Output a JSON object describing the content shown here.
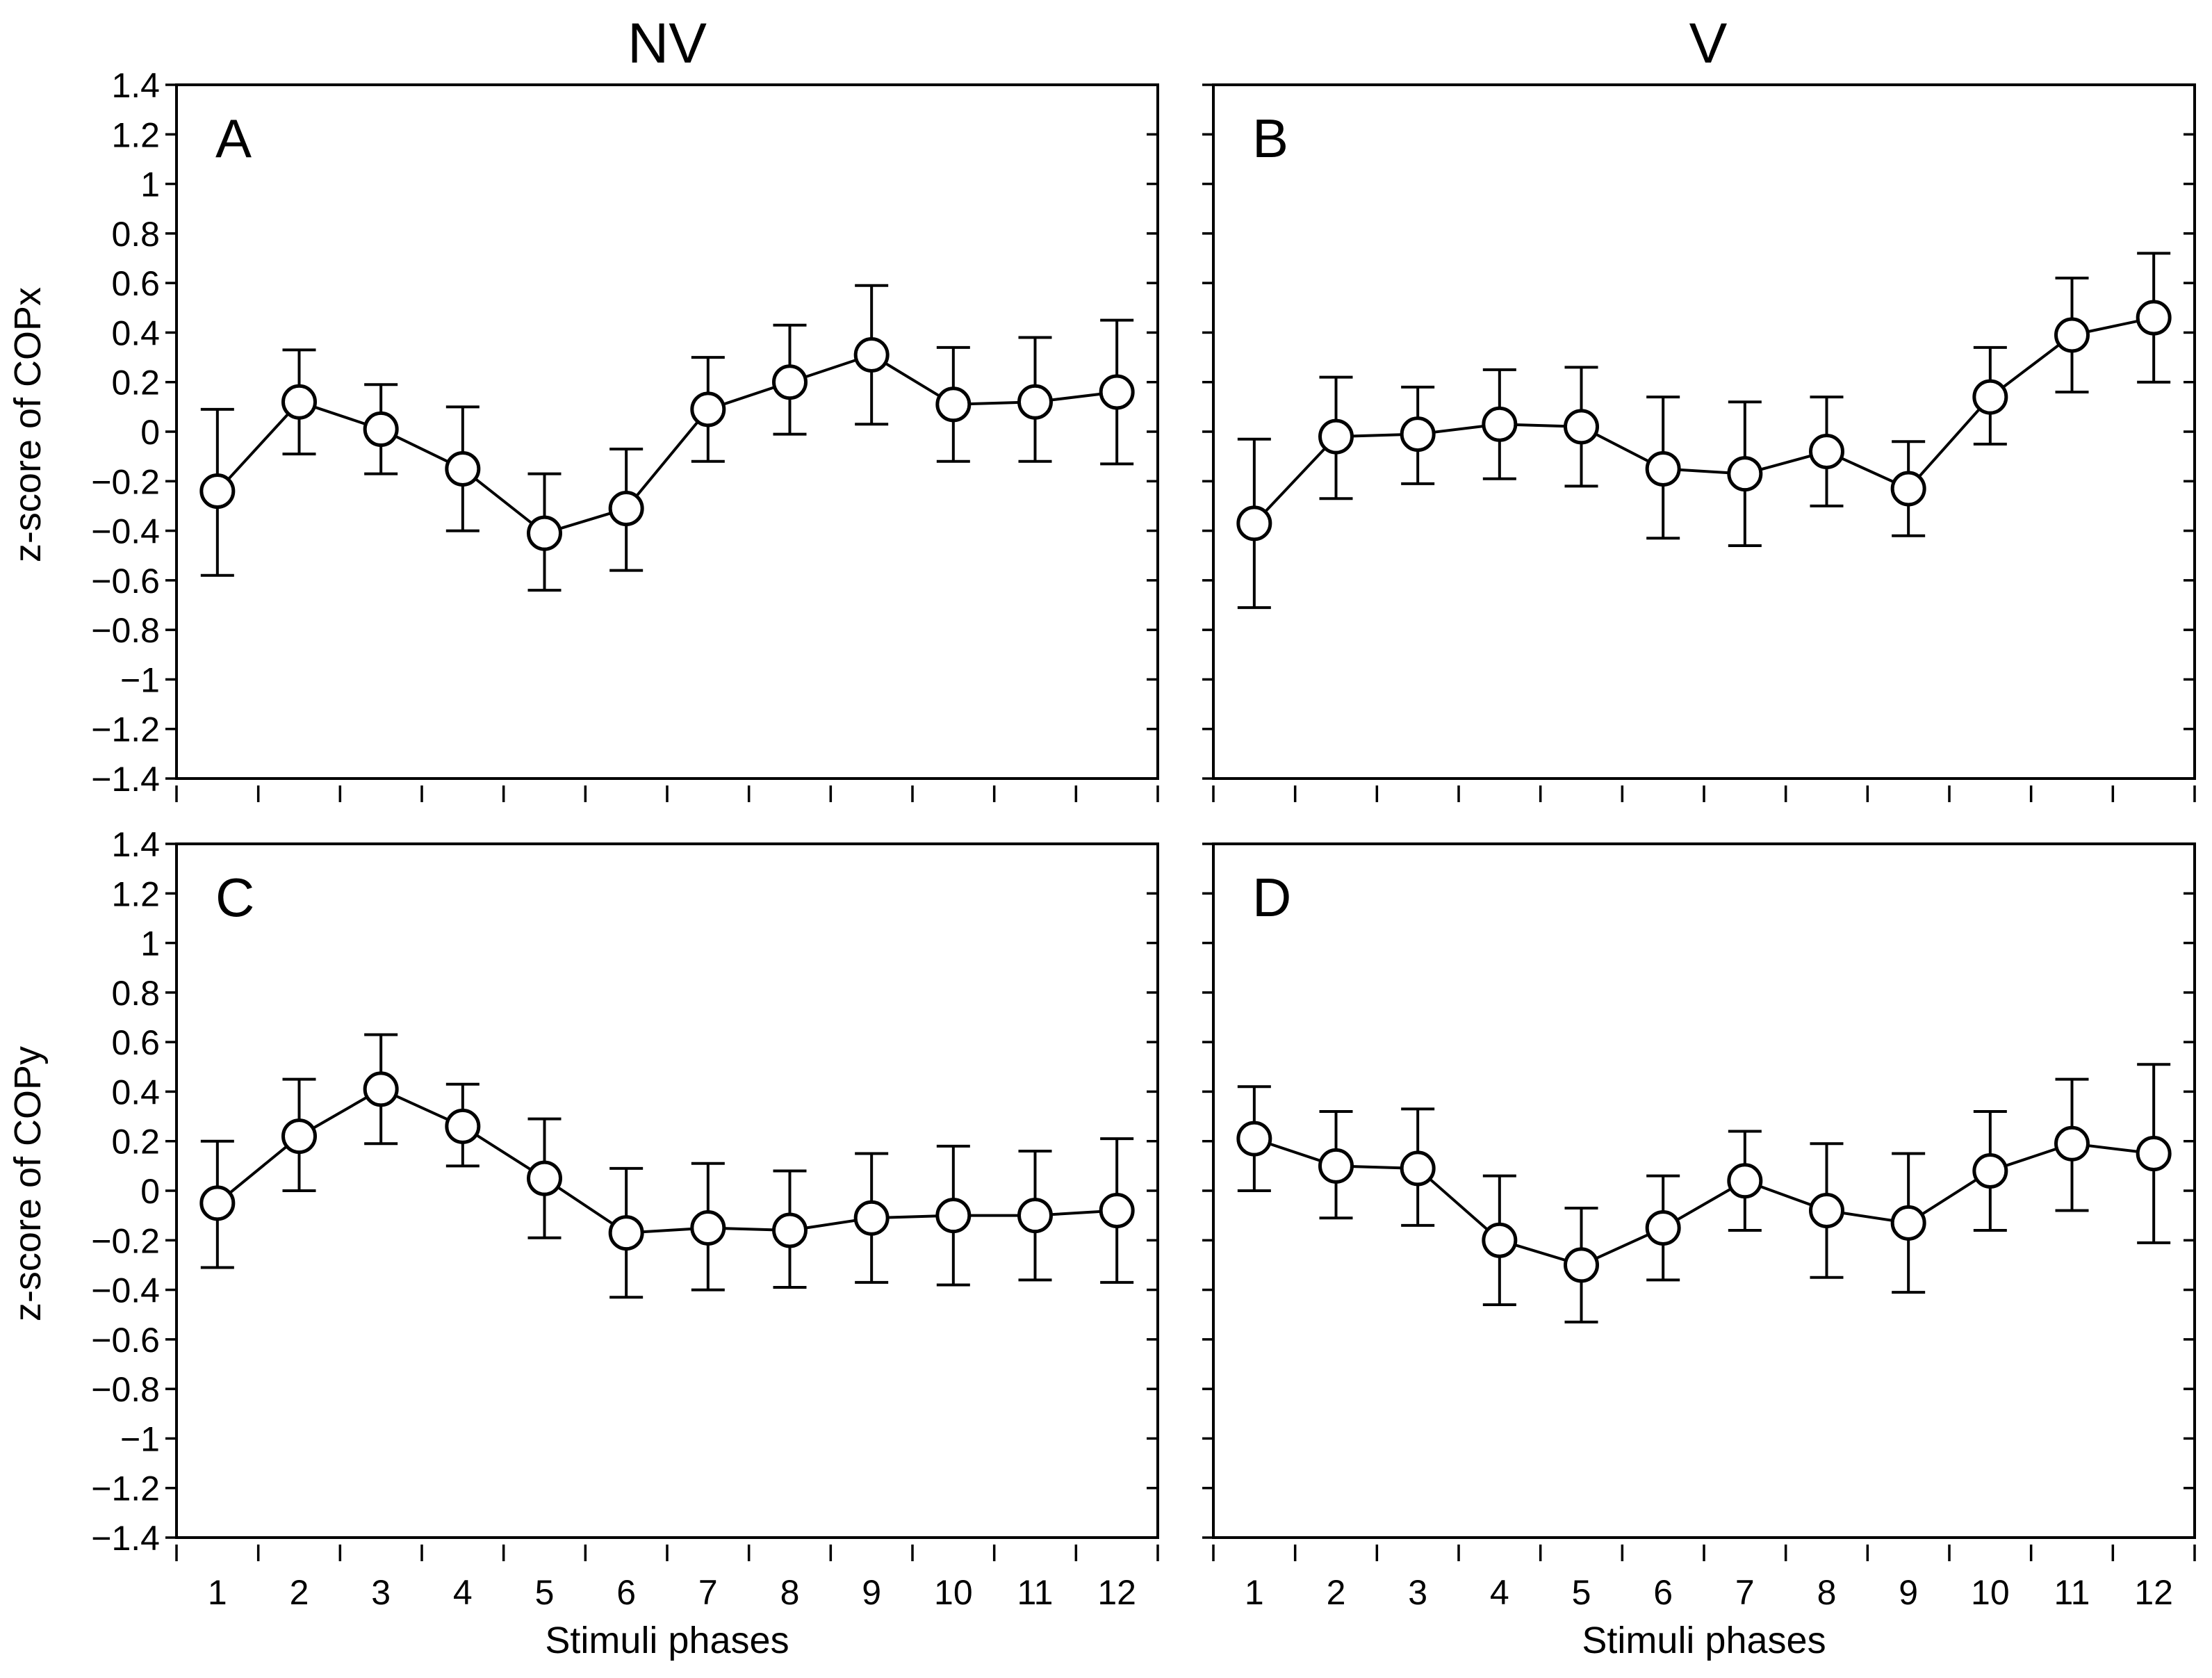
{
  "column_titles": [
    "NV",
    "V"
  ],
  "chart_data": [
    {
      "type": "line",
      "panel": "A",
      "column": "NV",
      "ylabel": "z-score of COPx",
      "xlabel": "",
      "ylim": [
        -1.4,
        1.4
      ],
      "x": [
        1,
        2,
        3,
        4,
        5,
        6,
        7,
        8,
        9,
        10,
        11,
        12
      ],
      "series": [
        {
          "name": "NV COPx",
          "values": [
            -0.24,
            0.12,
            0.01,
            -0.15,
            -0.41,
            -0.31,
            0.09,
            0.2,
            0.31,
            0.11,
            0.12,
            0.16
          ],
          "err_upper": [
            0.09,
            0.33,
            0.19,
            0.1,
            -0.17,
            -0.07,
            0.3,
            0.43,
            0.59,
            0.34,
            0.38,
            0.45
          ],
          "err_lower": [
            -0.58,
            -0.09,
            -0.17,
            -0.4,
            -0.64,
            -0.56,
            -0.12,
            -0.01,
            0.03,
            -0.12,
            -0.12,
            -0.13
          ]
        }
      ]
    },
    {
      "type": "line",
      "panel": "B",
      "column": "V",
      "ylabel": "",
      "xlabel": "",
      "ylim": [
        -1.4,
        1.4
      ],
      "x": [
        1,
        2,
        3,
        4,
        5,
        6,
        7,
        8,
        9,
        10,
        11,
        12
      ],
      "series": [
        {
          "name": "V COPx",
          "values": [
            -0.37,
            -0.02,
            -0.01,
            0.03,
            0.02,
            -0.15,
            -0.17,
            -0.08,
            -0.23,
            0.14,
            0.39,
            0.46
          ],
          "err_upper": [
            -0.03,
            0.22,
            0.18,
            0.25,
            0.26,
            0.14,
            0.12,
            0.14,
            -0.04,
            0.34,
            0.62,
            0.72
          ],
          "err_lower": [
            -0.71,
            -0.27,
            -0.21,
            -0.19,
            -0.22,
            -0.43,
            -0.46,
            -0.3,
            -0.42,
            -0.05,
            0.16,
            0.2
          ]
        }
      ]
    },
    {
      "type": "line",
      "panel": "C",
      "column": "NV",
      "ylabel": "z-score of COPy",
      "xlabel": "Stimuli phases",
      "ylim": [
        -1.4,
        1.4
      ],
      "x": [
        1,
        2,
        3,
        4,
        5,
        6,
        7,
        8,
        9,
        10,
        11,
        12
      ],
      "series": [
        {
          "name": "NV COPy",
          "values": [
            -0.05,
            0.22,
            0.41,
            0.26,
            0.05,
            -0.17,
            -0.15,
            -0.16,
            -0.11,
            -0.1,
            -0.1,
            -0.08
          ],
          "err_upper": [
            0.2,
            0.45,
            0.63,
            0.43,
            0.29,
            0.09,
            0.11,
            0.08,
            0.15,
            0.18,
            0.16,
            0.21
          ],
          "err_lower": [
            -0.31,
            0.0,
            0.19,
            0.1,
            -0.19,
            -0.43,
            -0.4,
            -0.39,
            -0.37,
            -0.38,
            -0.36,
            -0.37
          ]
        }
      ]
    },
    {
      "type": "line",
      "panel": "D",
      "column": "V",
      "ylabel": "",
      "xlabel": "Stimuli phases",
      "ylim": [
        -1.4,
        1.4
      ],
      "x": [
        1,
        2,
        3,
        4,
        5,
        6,
        7,
        8,
        9,
        10,
        11,
        12
      ],
      "series": [
        {
          "name": "V COPy",
          "values": [
            0.21,
            0.1,
            0.09,
            -0.2,
            -0.3,
            -0.15,
            0.04,
            -0.08,
            -0.13,
            0.08,
            0.19,
            0.15
          ],
          "err_upper": [
            0.42,
            0.32,
            0.33,
            0.06,
            -0.07,
            0.06,
            0.24,
            0.19,
            0.15,
            0.32,
            0.45,
            0.51
          ],
          "err_lower": [
            0.0,
            -0.11,
            -0.14,
            -0.46,
            -0.53,
            -0.36,
            -0.16,
            -0.35,
            -0.41,
            -0.16,
            -0.08,
            -0.21
          ]
        }
      ]
    }
  ],
  "y_ticks": [
    "1.4",
    "1.2",
    "1",
    "0.8",
    "0.6",
    "0.4",
    "0.2",
    "0",
    "−0.2",
    "−0.4",
    "−0.6",
    "−0.8",
    "−1",
    "−1.2",
    "−1.4"
  ],
  "x_ticks": [
    "1",
    "2",
    "3",
    "4",
    "5",
    "6",
    "7",
    "8",
    "9",
    "10",
    "11",
    "12"
  ]
}
